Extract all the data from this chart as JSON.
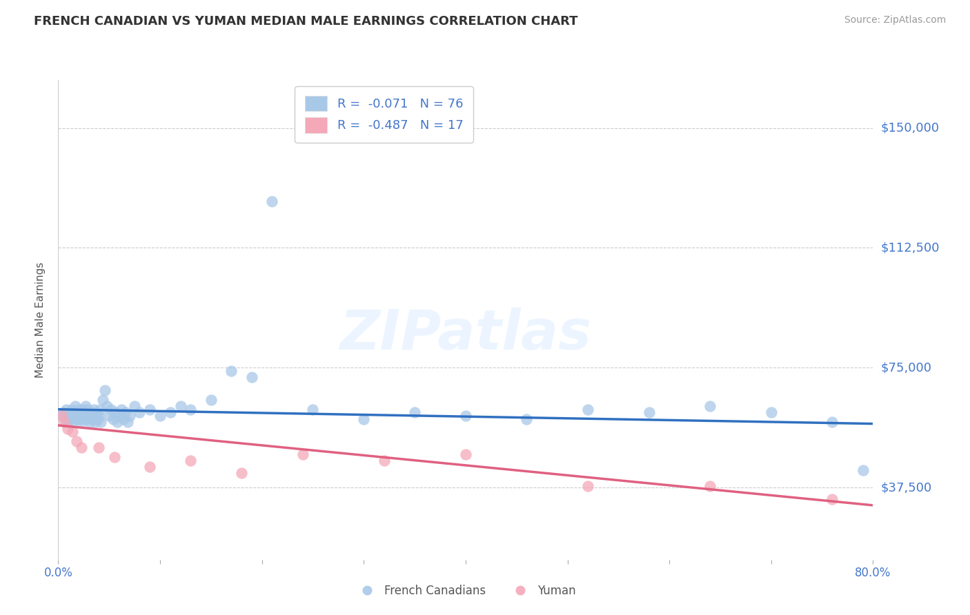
{
  "title": "FRENCH CANADIAN VS YUMAN MEDIAN MALE EARNINGS CORRELATION CHART",
  "source": "Source: ZipAtlas.com",
  "ylabel": "Median Male Earnings",
  "xlim": [
    0.0,
    0.8
  ],
  "ylim": [
    15000,
    165000
  ],
  "yticks": [
    37500,
    75000,
    112500,
    150000
  ],
  "ytick_labels": [
    "$37,500",
    "$75,000",
    "$112,500",
    "$150,000"
  ],
  "xticks": [
    0.0,
    0.1,
    0.2,
    0.3,
    0.4,
    0.5,
    0.6,
    0.7,
    0.8
  ],
  "xtick_labels": [
    "0.0%",
    "",
    "",
    "",
    "",
    "",
    "",
    "",
    "80.0%"
  ],
  "blue_R": -0.071,
  "blue_N": 76,
  "pink_R": -0.487,
  "pink_N": 17,
  "blue_color": "#a8c8e8",
  "pink_color": "#f4a8b8",
  "blue_line_color": "#3070c0",
  "pink_line_color": "#e06080",
  "axis_color": "#4477cc",
  "watermark": "ZIPatlas",
  "background_color": "#ffffff",
  "blue_scatter_x": [
    0.003,
    0.005,
    0.007,
    0.008,
    0.009,
    0.01,
    0.011,
    0.012,
    0.013,
    0.014,
    0.015,
    0.016,
    0.017,
    0.018,
    0.019,
    0.02,
    0.021,
    0.022,
    0.022,
    0.023,
    0.024,
    0.025,
    0.026,
    0.027,
    0.027,
    0.028,
    0.029,
    0.03,
    0.031,
    0.032,
    0.033,
    0.034,
    0.035,
    0.036,
    0.037,
    0.038,
    0.039,
    0.04,
    0.041,
    0.042,
    0.044,
    0.046,
    0.048,
    0.05,
    0.052,
    0.054,
    0.056,
    0.058,
    0.06,
    0.062,
    0.064,
    0.066,
    0.068,
    0.07,
    0.075,
    0.08,
    0.09,
    0.1,
    0.11,
    0.12,
    0.13,
    0.15,
    0.17,
    0.19,
    0.21,
    0.25,
    0.3,
    0.35,
    0.4,
    0.46,
    0.52,
    0.58,
    0.64,
    0.7,
    0.76,
    0.79
  ],
  "blue_scatter_y": [
    60000,
    61000,
    59000,
    62000,
    58000,
    60000,
    61000,
    59000,
    62000,
    58000,
    60000,
    61000,
    63000,
    59000,
    61000,
    60000,
    62000,
    59000,
    61000,
    58000,
    62000,
    61000,
    60000,
    63000,
    61000,
    59000,
    62000,
    60000,
    58000,
    61000,
    60000,
    59000,
    62000,
    58000,
    60000,
    61000,
    59000,
    60000,
    62000,
    58000,
    65000,
    68000,
    63000,
    60000,
    62000,
    59000,
    61000,
    58000,
    60000,
    62000,
    59000,
    61000,
    58000,
    60000,
    63000,
    61000,
    62000,
    60000,
    61000,
    63000,
    62000,
    65000,
    74000,
    72000,
    127000,
    62000,
    59000,
    61000,
    60000,
    59000,
    62000,
    61000,
    63000,
    61000,
    58000,
    43000
  ],
  "pink_scatter_x": [
    0.004,
    0.006,
    0.009,
    0.014,
    0.018,
    0.023,
    0.04,
    0.055,
    0.09,
    0.13,
    0.18,
    0.24,
    0.32,
    0.4,
    0.52,
    0.64,
    0.76
  ],
  "pink_scatter_y": [
    60000,
    58000,
    56000,
    55000,
    52000,
    50000,
    50000,
    47000,
    44000,
    46000,
    42000,
    48000,
    46000,
    48000,
    38000,
    38000,
    34000
  ],
  "blue_line_x0": 0.0,
  "blue_line_x1": 0.8,
  "blue_line_y0": 62000,
  "blue_line_y1": 57500,
  "pink_line_x0": 0.0,
  "pink_line_x1": 0.8,
  "pink_line_y0": 57000,
  "pink_line_y1": 32000
}
